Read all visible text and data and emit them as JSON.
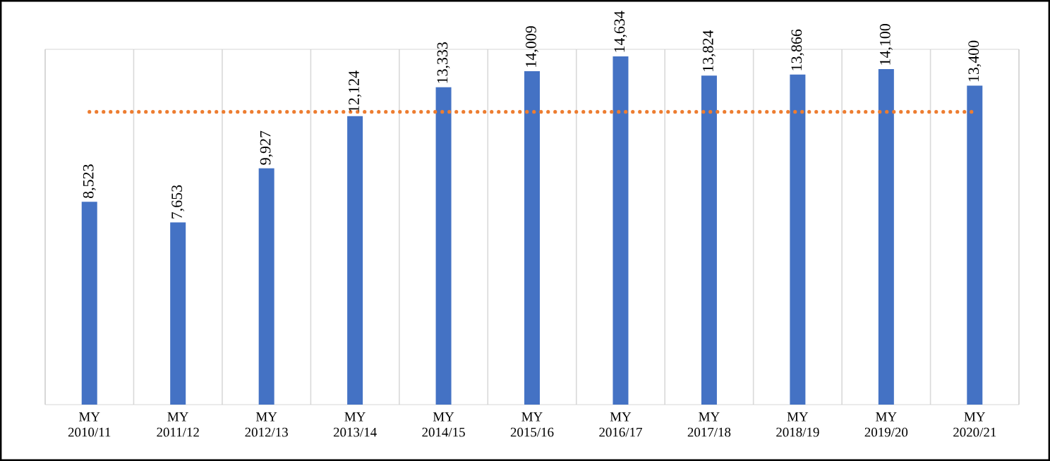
{
  "chart_data": {
    "type": "bar",
    "categories": [
      "MY 2010/11",
      "MY 2011/12",
      "MY 2012/13",
      "MY 2013/14",
      "MY 2014/15",
      "MY 2015/16",
      "MY 2016/17",
      "MY 2017/18",
      "MY 2018/19",
      "MY 2019/20",
      "MY 2020/21"
    ],
    "values": [
      8523,
      7653,
      9927,
      12124,
      13333,
      14009,
      14634,
      13824,
      13866,
      14100,
      13400
    ],
    "value_labels": [
      "8,523",
      "7,653",
      "9,927",
      "12,124",
      "13,333",
      "14,009",
      "14,634",
      "13,824",
      "13,866",
      "14,100",
      "13,400"
    ],
    "color": "#4472c4",
    "ref_lines": [
      {
        "axis": "y",
        "value": 12300,
        "color": "#ed7d31",
        "line_style": "dotted"
      }
    ],
    "grid": "x",
    "tick_labels": "x"
  }
}
